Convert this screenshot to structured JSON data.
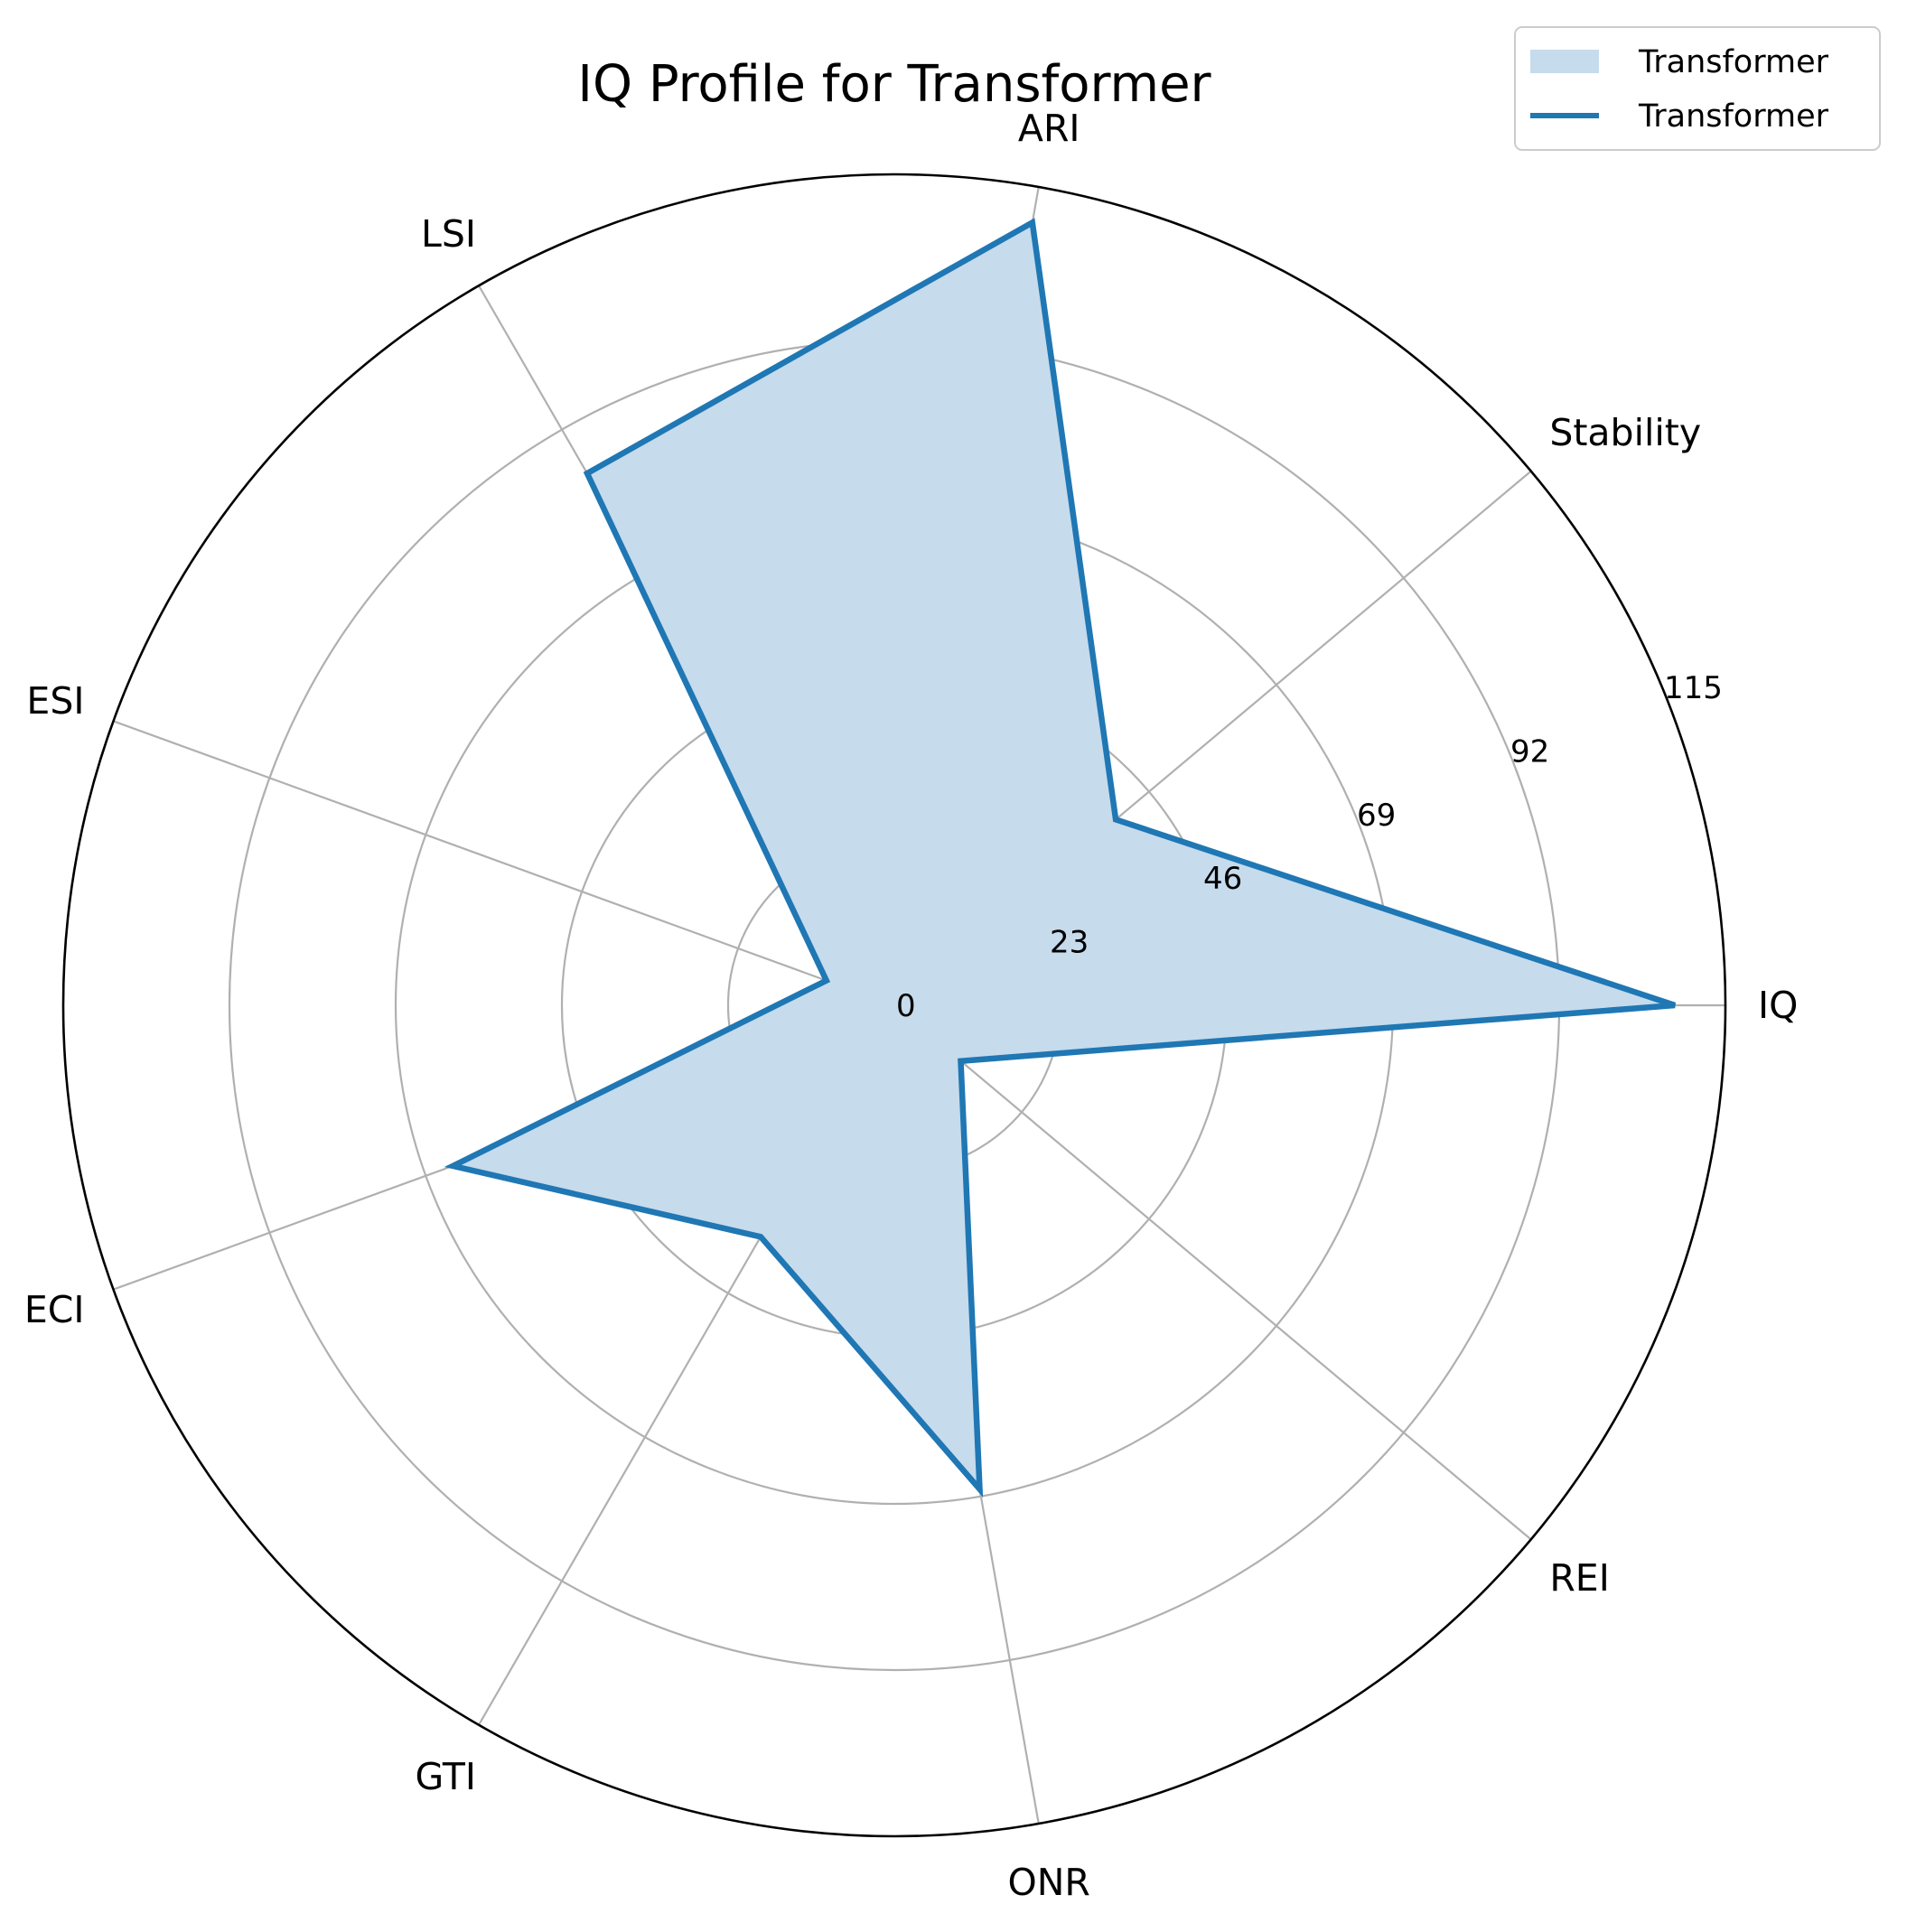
{
  "chart_data": {
    "type": "radar",
    "title": "IQ Profile for Transformer",
    "axes": [
      "IQ",
      "Stability",
      "ARI",
      "LSI",
      "ESI",
      "ECI",
      "GTI",
      "ONR",
      "REI"
    ],
    "series": [
      {
        "name": "Transformer",
        "values": [
          108,
          40,
          110,
          85,
          10,
          65,
          37,
          68,
          12
        ]
      }
    ],
    "radial_ticks": [
      0,
      23,
      46,
      69,
      92,
      115
    ],
    "tick_labels": [
      "0",
      "23",
      "46",
      "69",
      "92",
      "115"
    ],
    "rlim": [
      0,
      115
    ],
    "grid": true,
    "legend": {
      "placement": "top-right",
      "entries": [
        "Transformer",
        "Transformer"
      ]
    },
    "colors": {
      "line": "#1f77b4",
      "fill": "#c6dbec",
      "grid": "#b0b0b0",
      "frame": "#000000"
    }
  }
}
